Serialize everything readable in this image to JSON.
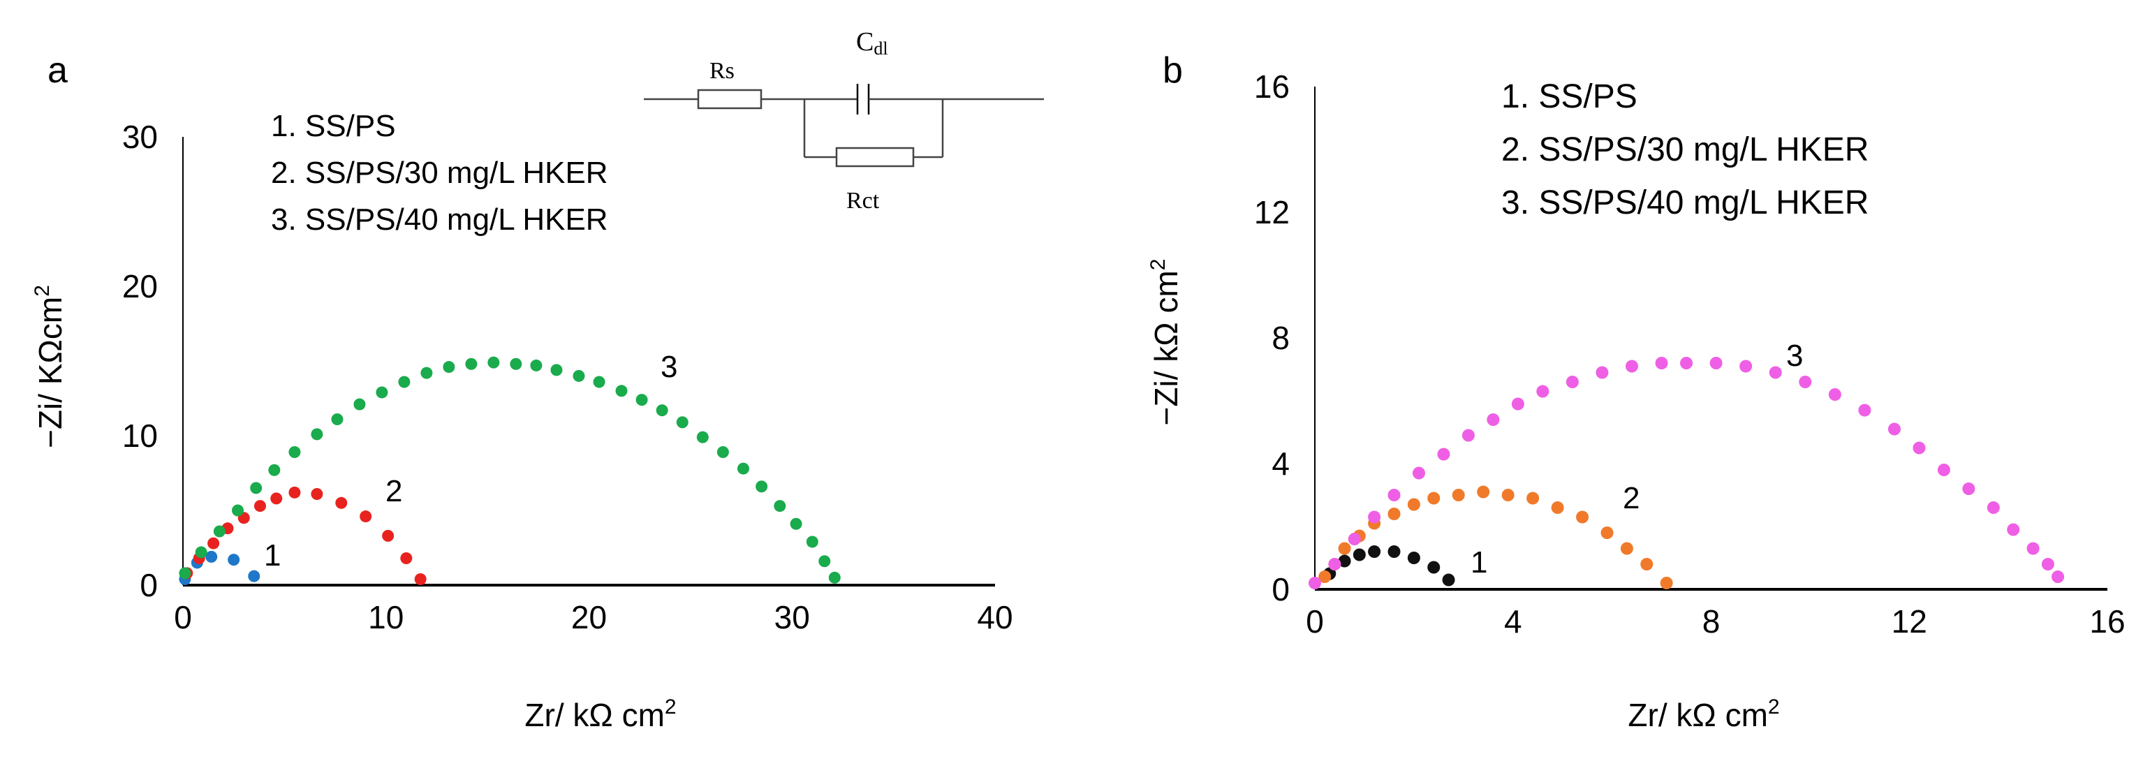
{
  "chart_data": [
    {
      "panel_label": "a",
      "type": "scatter",
      "xlabel": "Zr/ kΩ cm",
      "xlabel_sup": "2",
      "ylabel": "−Zi/ KΩcm",
      "ylabel_sup": "2",
      "xlim": [
        0,
        40
      ],
      "ylim": [
        0,
        30
      ],
      "xticks": [
        0,
        10,
        20,
        30,
        40
      ],
      "yticks": [
        0,
        10,
        20,
        30
      ],
      "grid": false,
      "legend": [
        "1. SS/PS",
        "2. SS/PS/30 mg/L HKER",
        "3. SS/PS/40 mg/L HKER"
      ],
      "legend_placement": "top-center",
      "series": [
        {
          "label": "1",
          "color": "#1f77c9",
          "x": [
            0.1,
            0.7,
            1.4,
            2.5,
            3.5
          ],
          "y": [
            0.4,
            1.5,
            1.9,
            1.7,
            0.6
          ]
        },
        {
          "label": "2",
          "color": "#e8231f",
          "x": [
            0.2,
            0.8,
            1.5,
            2.2,
            3.0,
            3.8,
            4.6,
            5.5,
            6.6,
            7.8,
            9.0,
            10.1,
            11.0,
            11.7
          ],
          "y": [
            0.8,
            1.8,
            2.8,
            3.8,
            4.5,
            5.3,
            5.8,
            6.2,
            6.1,
            5.5,
            4.6,
            3.3,
            1.8,
            0.4
          ]
        },
        {
          "label": "3",
          "color": "#19ab4c",
          "x": [
            0.1,
            0.9,
            1.8,
            2.7,
            3.6,
            4.5,
            5.5,
            6.6,
            7.6,
            8.7,
            9.8,
            10.9,
            12.0,
            13.1,
            14.2,
            15.3,
            16.4,
            17.4,
            18.4,
            19.5,
            20.5,
            21.6,
            22.6,
            23.6,
            24.6,
            25.6,
            26.6,
            27.6,
            28.5,
            29.4,
            30.2,
            31.0,
            31.6,
            32.1
          ],
          "y": [
            0.8,
            2.2,
            3.6,
            5.0,
            6.5,
            7.7,
            8.9,
            10.1,
            11.1,
            12.1,
            12.9,
            13.6,
            14.2,
            14.6,
            14.8,
            14.9,
            14.8,
            14.7,
            14.4,
            14.0,
            13.6,
            13.0,
            12.4,
            11.7,
            10.9,
            9.9,
            8.9,
            7.8,
            6.6,
            5.3,
            4.1,
            2.9,
            1.6,
            0.5
          ]
        }
      ],
      "annotations": [
        "1",
        "2",
        "3"
      ]
    },
    {
      "panel_label": "b",
      "type": "scatter",
      "xlabel": "Zr/ kΩ cm",
      "xlabel_sup": "2",
      "ylabel": "−Zi/ kΩ cm",
      "ylabel_sup": "2",
      "xlim": [
        0,
        16
      ],
      "ylim": [
        0,
        16
      ],
      "xticks": [
        0,
        4,
        8,
        12,
        16
      ],
      "yticks": [
        0,
        4,
        8,
        12,
        16
      ],
      "grid": false,
      "legend": [
        "1. SS/PS",
        "2. SS/PS/30 mg/L HKER",
        "3. SS/PS/40 mg/L HKER"
      ],
      "legend_placement": "top-center",
      "series": [
        {
          "label": "1",
          "color": "#111111",
          "x": [
            0.3,
            0.6,
            0.9,
            1.2,
            1.6,
            2.0,
            2.4,
            2.7
          ],
          "y": [
            0.5,
            0.9,
            1.1,
            1.2,
            1.2,
            1.0,
            0.7,
            0.3
          ]
        },
        {
          "label": "2",
          "color": "#f07a2a",
          "x": [
            0.2,
            0.4,
            0.6,
            0.9,
            1.2,
            1.6,
            2.0,
            2.4,
            2.9,
            3.4,
            3.9,
            4.4,
            4.9,
            5.4,
            5.9,
            6.3,
            6.7,
            7.1
          ],
          "y": [
            0.4,
            0.8,
            1.3,
            1.7,
            2.1,
            2.4,
            2.7,
            2.9,
            3.0,
            3.1,
            3.0,
            2.9,
            2.6,
            2.3,
            1.8,
            1.3,
            0.8,
            0.2
          ]
        },
        {
          "label": "3",
          "color": "#ef5fe5",
          "x": [
            0.0,
            0.4,
            0.8,
            1.2,
            1.6,
            2.1,
            2.6,
            3.1,
            3.6,
            4.1,
            4.6,
            5.2,
            5.8,
            6.4,
            7.0,
            7.5,
            8.1,
            8.7,
            9.3,
            9.9,
            10.5,
            11.1,
            11.7,
            12.2,
            12.7,
            13.2,
            13.7,
            14.1,
            14.5,
            14.8,
            15.0
          ],
          "y": [
            0.2,
            0.8,
            1.6,
            2.3,
            3.0,
            3.7,
            4.3,
            4.9,
            5.4,
            5.9,
            6.3,
            6.6,
            6.9,
            7.1,
            7.2,
            7.2,
            7.2,
            7.1,
            6.9,
            6.6,
            6.2,
            5.7,
            5.1,
            4.5,
            3.8,
            3.2,
            2.6,
            1.9,
            1.3,
            0.8,
            0.4
          ]
        }
      ],
      "annotations": [
        "1",
        "2",
        "3"
      ]
    }
  ],
  "circuit": {
    "rs_label": "Rs",
    "cdl_label": "C",
    "cdl_sub": "dl",
    "rct_label": "Rct"
  }
}
